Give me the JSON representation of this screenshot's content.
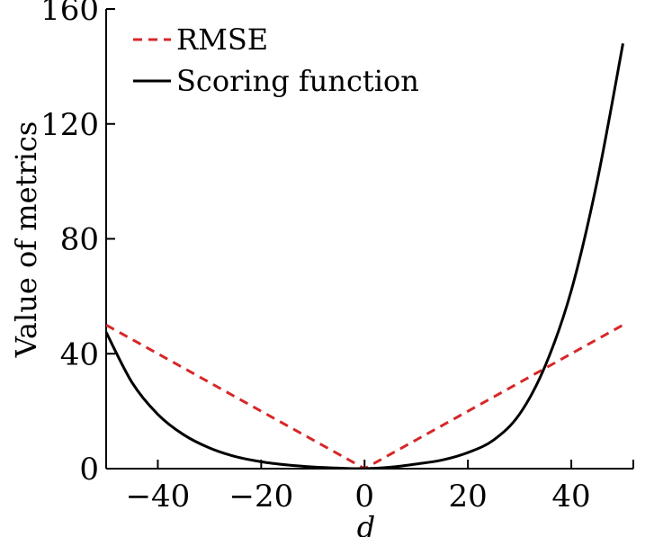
{
  "chart_data": {
    "type": "line",
    "title": "",
    "xlabel": "d",
    "ylabel": "Value of metrics",
    "xlim": [
      -50,
      52
    ],
    "ylim": [
      0,
      160
    ],
    "xticks": [
      -40,
      -20,
      0,
      20,
      40
    ],
    "xtick_labels": [
      "−40",
      "−20",
      "0",
      "20",
      "40"
    ],
    "yticks": [
      0,
      40,
      80,
      120,
      160
    ],
    "ytick_labels": [
      "0",
      "40",
      "80",
      "120",
      "160"
    ],
    "grid": false,
    "legend_position": "top-left",
    "series": [
      {
        "name": "RMSE",
        "style": "dashed",
        "color": "#d62728",
        "x": [
          -50,
          0,
          50
        ],
        "y": [
          50,
          0,
          50
        ]
      },
      {
        "name": "Scoring function",
        "style": "solid",
        "color": "#000000",
        "x": [
          -50,
          -45,
          -40,
          -35,
          -30,
          -25,
          -20,
          -15,
          -10,
          -5,
          0,
          5,
          10,
          15,
          20,
          25,
          30,
          35,
          40,
          45,
          50
        ],
        "y": [
          47.5,
          30.0,
          18.9,
          11.8,
          7.2,
          4.2,
          2.4,
          1.3,
          0.6,
          0.2,
          0,
          0.5,
          1.6,
          3.0,
          5.6,
          10.0,
          19.0,
          36.0,
          62.0,
          100.0,
          148.0
        ]
      }
    ]
  }
}
